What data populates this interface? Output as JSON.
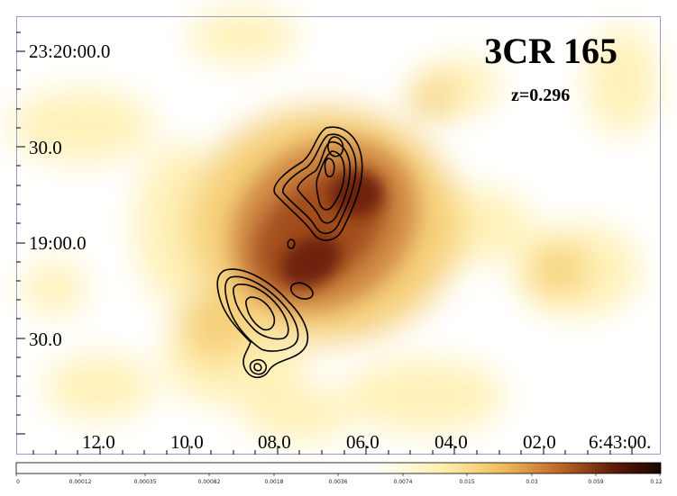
{
  "title": "3CR 165",
  "redshift_label": "z=0.296",
  "dec_labels": [
    "23:20:00.0",
    "30.0",
    "19:00.0",
    "30.0"
  ],
  "ra_labels": [
    "12.0",
    "10.0",
    "08.0",
    "06.0",
    "04.0",
    "02.0",
    "6:43:00."
  ],
  "colorbar_labels": [
    "0",
    "0.00012",
    "0.00035",
    "0.00082",
    "0.0018",
    "0.0036",
    "0.0074",
    "0.015",
    "0.03",
    "0.059",
    "0.12"
  ],
  "colors": {
    "frame": "#9c9ccc",
    "cmap_low": "#ffffff",
    "cmap_mid1": "#fff0b0",
    "cmap_mid2": "#f2c060",
    "cmap_mid3": "#c06a28",
    "cmap_high": "#5a1a06",
    "cmap_top": "#1a0400",
    "contour": "#000000"
  }
}
